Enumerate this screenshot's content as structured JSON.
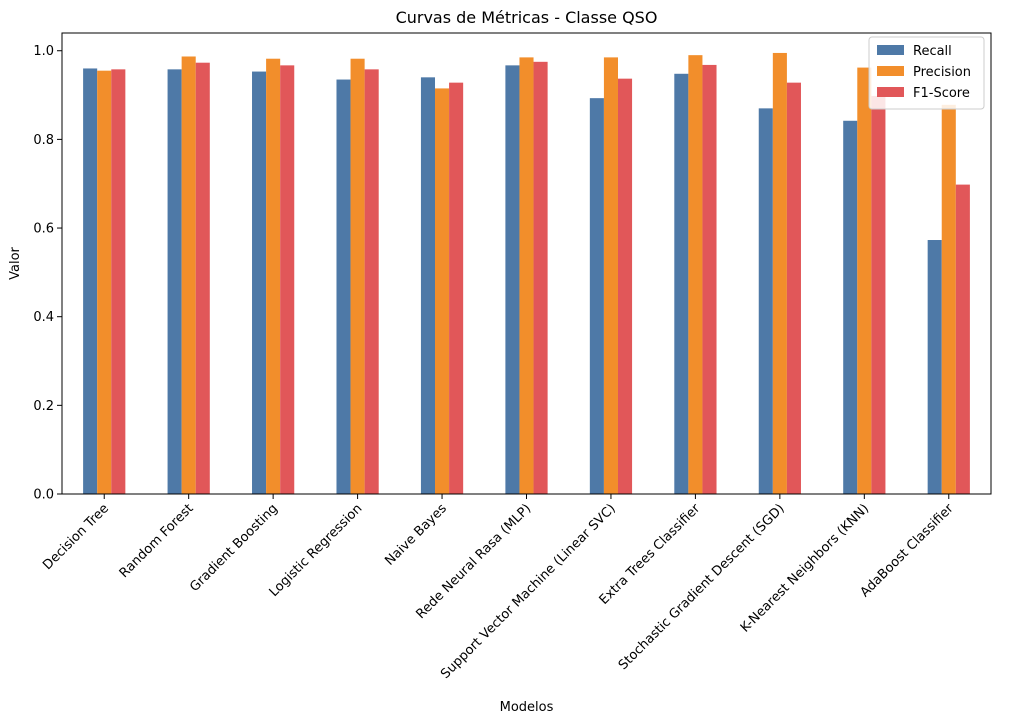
{
  "chart_data": {
    "type": "bar",
    "title": "Curvas de Métricas - Classe QSO",
    "xlabel": "Modelos",
    "ylabel": "Valor",
    "ylim": [
      0,
      1.04
    ],
    "yticks": [
      "0.0",
      "0.2",
      "0.4",
      "0.6",
      "0.8",
      "1.0"
    ],
    "ytick_values": [
      0,
      0.2,
      0.4,
      0.6,
      0.8,
      1.0
    ],
    "grid": false,
    "legend_position": "top-right",
    "categories": [
      "Decision Tree",
      "Random Forest",
      "Gradient Boosting",
      "Logistic Regression",
      "Naive Bayes",
      "Rede Neural Rasa (MLP)",
      "Support Vector Machine (Linear SVC)",
      "Extra Trees Classifier",
      "Stochastic Gradient Descent (SGD)",
      "K-Nearest Neighbors (KNN)",
      "AdaBoost Classifier"
    ],
    "series": [
      {
        "name": "Recall",
        "color": "#4e79a7",
        "values": [
          0.96,
          0.958,
          0.953,
          0.935,
          0.94,
          0.967,
          0.893,
          0.948,
          0.87,
          0.842,
          0.573
        ]
      },
      {
        "name": "Precision",
        "color": "#f28e2b",
        "values": [
          0.955,
          0.987,
          0.982,
          0.982,
          0.915,
          0.985,
          0.985,
          0.99,
          0.995,
          0.962,
          0.878
        ]
      },
      {
        "name": "F1-Score",
        "color": "#e15759",
        "values": [
          0.958,
          0.973,
          0.967,
          0.958,
          0.928,
          0.975,
          0.937,
          0.968,
          0.928,
          0.898,
          0.698
        ]
      }
    ]
  }
}
